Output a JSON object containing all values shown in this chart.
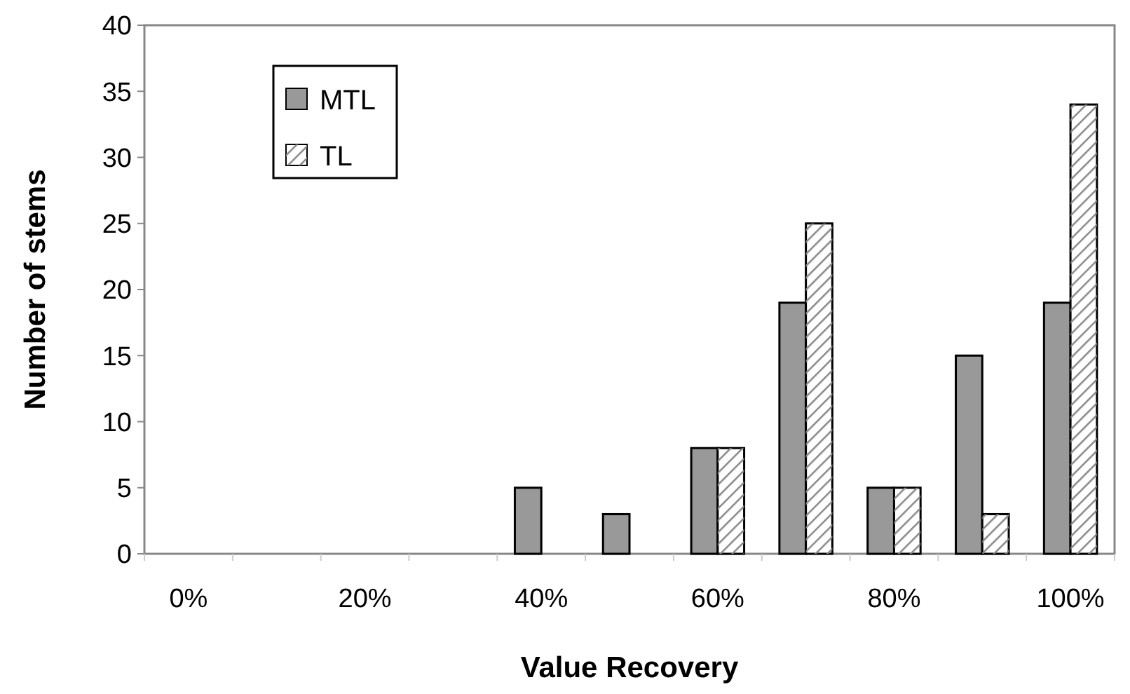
{
  "chart_data": {
    "type": "bar",
    "xlabel": "Value Recovery",
    "ylabel": "Number of stems",
    "categories": [
      "0%",
      null,
      "20%",
      null,
      "40%",
      null,
      "60%",
      null,
      "80%",
      null,
      "100%"
    ],
    "series": [
      {
        "name": "MTL",
        "color": "#999999",
        "values": [
          0,
          0,
          0,
          0,
          5,
          3,
          8,
          19,
          5,
          15,
          19
        ]
      },
      {
        "name": "TL",
        "color": "#ffffff",
        "values": [
          0,
          0,
          0,
          0,
          0,
          0,
          8,
          25,
          5,
          3,
          34
        ]
      }
    ],
    "ylim": [
      0,
      40
    ],
    "yticks": [
      0,
      5,
      10,
      15,
      20,
      25,
      30,
      35,
      40
    ],
    "grid": false,
    "legend": "top left"
  }
}
